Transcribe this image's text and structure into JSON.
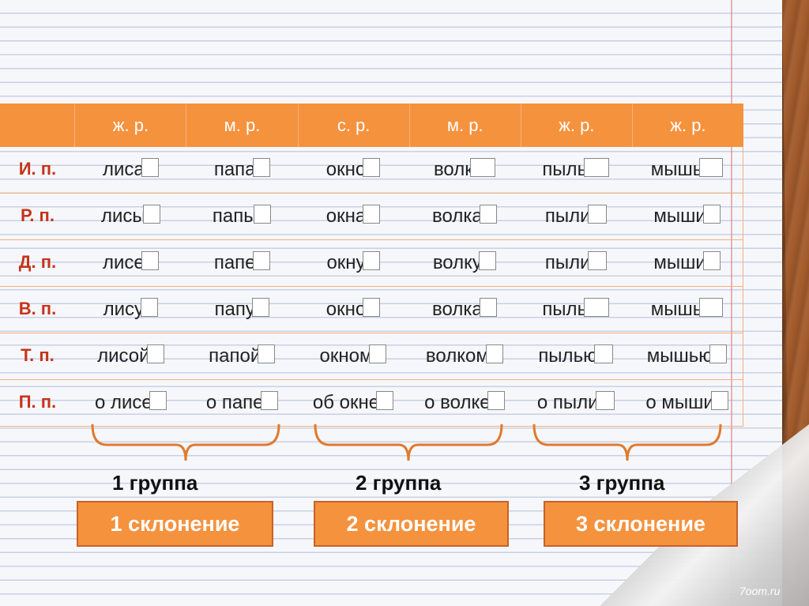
{
  "header": {
    "genders": [
      "ж. р.",
      "м. р.",
      "с. р.",
      "м. р.",
      "ж. р.",
      "ж. р."
    ]
  },
  "rows": [
    {
      "case": "И. п.",
      "cells": [
        {
          "stem": "лиса",
          "box_w": 20
        },
        {
          "stem": "папа",
          "box_w": 20
        },
        {
          "stem": "окно",
          "box_w": 20
        },
        {
          "stem": "волк",
          "box_w": 30
        },
        {
          "stem": "пыль",
          "box_w": 30
        },
        {
          "stem": "мышь",
          "box_w": 28
        }
      ]
    },
    {
      "case": "Р. п.",
      "cells": [
        {
          "stem": "лисы",
          "box_w": 20
        },
        {
          "stem": "папы",
          "box_w": 20
        },
        {
          "stem": "окна",
          "box_w": 20
        },
        {
          "stem": "волка",
          "box_w": 20
        },
        {
          "stem": "пыли",
          "box_w": 22
        },
        {
          "stem": "мыши",
          "box_w": 20
        }
      ]
    },
    {
      "case": "Д. п.",
      "cells": [
        {
          "stem": "лисе",
          "box_w": 20
        },
        {
          "stem": "папе",
          "box_w": 20
        },
        {
          "stem": "окну",
          "box_w": 20
        },
        {
          "stem": "волку",
          "box_w": 20
        },
        {
          "stem": "пыли",
          "box_w": 22
        },
        {
          "stem": "мыши",
          "box_w": 20
        }
      ]
    },
    {
      "case": "В. п.",
      "cells": [
        {
          "stem": "лису",
          "box_w": 20
        },
        {
          "stem": "папу",
          "box_w": 20
        },
        {
          "stem": "окно",
          "box_w": 20
        },
        {
          "stem": "волка",
          "box_w": 20
        },
        {
          "stem": "пыль",
          "box_w": 30
        },
        {
          "stem": "мышь",
          "box_w": 28
        }
      ]
    },
    {
      "case": "Т. п.",
      "cells": [
        {
          "stem": "лисой",
          "box_w": 20
        },
        {
          "stem": "папой",
          "box_w": 20
        },
        {
          "stem": "окном",
          "box_w": 20
        },
        {
          "stem": "волком",
          "box_w": 20
        },
        {
          "stem": "пылью",
          "box_w": 22
        },
        {
          "stem": "мышью",
          "box_w": 20
        }
      ]
    },
    {
      "case": "П. п.",
      "cells": [
        {
          "stem": "о лисе",
          "box_w": 20
        },
        {
          "stem": "о папе",
          "box_w": 20
        },
        {
          "stem": "об окне",
          "box_w": 20
        },
        {
          "stem": "о волке",
          "box_w": 20
        },
        {
          "stem": "о пыли",
          "box_w": 22
        },
        {
          "stem": "о мыши",
          "box_w": 20
        }
      ]
    }
  ],
  "groups": [
    {
      "group": "1 группа",
      "declension": "1 склонение"
    },
    {
      "group": "2 группа",
      "declension": "2 склонение"
    },
    {
      "group": "3 группа",
      "declension": "3 склонение"
    }
  ],
  "watermark": "7oom.ru",
  "colors": {
    "accent": "#f5923e",
    "case_label": "#c7331a"
  }
}
